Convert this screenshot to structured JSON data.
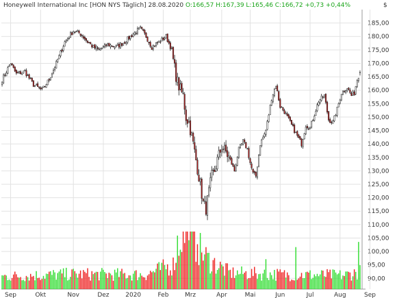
{
  "header": {
    "instrument": "Honeywell International Inc [HON NYS  Täglich] 28.08.2020",
    "ohlc_text": "O:166,57 H:167,39 L:165,46 C:166,72",
    "change_text": "+0,73 +0,44%",
    "currency": "$"
  },
  "colors": {
    "up": "#ffffff",
    "down": "#b22222",
    "vol_up": "#33dd33",
    "vol_down": "#ee2222",
    "grid": "#e2e2e2",
    "text": "#333333"
  },
  "chart_data": {
    "type": "candlestick",
    "title": "Honeywell International Inc [HON NYS  Täglich] 28.08.2020",
    "ylim": [
      86,
      190
    ],
    "y_ticks": [
      90,
      95,
      100,
      105,
      110,
      115,
      120,
      125,
      130,
      135,
      140,
      145,
      150,
      155,
      160,
      165,
      170,
      175,
      180,
      185
    ],
    "y_tick_labels": [
      "90,00",
      "95,00",
      "100,00",
      "105,00",
      "110,00",
      "115,00",
      "120,00",
      "125,00",
      "130,00",
      "135,00",
      "140,00",
      "145,00",
      "150,00",
      "155,00",
      "160,00",
      "165,00",
      "170,00",
      "175,00",
      "180,00",
      "185,00"
    ],
    "x_labels": [
      "Sep",
      "Okt",
      "Nov",
      "Dez",
      "2020",
      "Feb",
      "Mrz",
      "Apr",
      "Mai",
      "Jun",
      "Jul",
      "Aug",
      "Sep"
    ],
    "x_label_index": [
      6,
      27,
      50,
      71,
      92,
      113,
      132,
      154,
      174,
      195,
      216,
      237,
      258
    ],
    "grid": true,
    "last": {
      "open": 166.57,
      "high": 167.39,
      "low": 165.46,
      "close": 166.72,
      "change": 0.73,
      "change_pct": 0.44
    },
    "close_keypoints": [
      [
        0,
        164
      ],
      [
        6,
        170
      ],
      [
        10,
        166
      ],
      [
        16,
        167
      ],
      [
        22,
        162
      ],
      [
        28,
        160
      ],
      [
        33,
        164
      ],
      [
        38,
        170
      ],
      [
        44,
        178
      ],
      [
        50,
        182
      ],
      [
        55,
        181
      ],
      [
        60,
        178
      ],
      [
        64,
        176
      ],
      [
        68,
        175
      ],
      [
        74,
        177
      ],
      [
        80,
        176
      ],
      [
        86,
        178
      ],
      [
        92,
        181
      ],
      [
        97,
        183
      ],
      [
        101,
        180
      ],
      [
        105,
        176
      ],
      [
        110,
        178
      ],
      [
        115,
        180
      ],
      [
        119,
        175
      ],
      [
        121,
        168
      ],
      [
        123,
        163
      ],
      [
        125,
        160
      ],
      [
        127,
        158
      ],
      [
        129,
        150
      ],
      [
        131,
        148
      ],
      [
        133,
        143
      ],
      [
        135,
        137
      ],
      [
        137,
        131
      ],
      [
        139,
        125
      ],
      [
        141,
        118
      ],
      [
        143,
        116
      ],
      [
        145,
        122
      ],
      [
        147,
        128
      ],
      [
        149,
        130
      ],
      [
        151,
        134
      ],
      [
        154,
        139
      ],
      [
        157,
        137
      ],
      [
        160,
        134
      ],
      [
        163,
        130
      ],
      [
        166,
        138
      ],
      [
        169,
        141
      ],
      [
        172,
        138
      ],
      [
        174,
        133
      ],
      [
        176,
        129
      ],
      [
        178,
        128
      ],
      [
        181,
        140
      ],
      [
        185,
        145
      ],
      [
        189,
        157
      ],
      [
        192,
        162
      ],
      [
        195,
        154
      ],
      [
        198,
        152
      ],
      [
        201,
        149
      ],
      [
        204,
        146
      ],
      [
        207,
        143
      ],
      [
        210,
        140
      ],
      [
        213,
        147
      ],
      [
        216,
        146
      ],
      [
        219,
        151
      ],
      [
        222,
        156
      ],
      [
        226,
        158
      ],
      [
        229,
        149
      ],
      [
        232,
        148
      ],
      [
        235,
        153
      ],
      [
        238,
        159
      ],
      [
        242,
        161
      ],
      [
        245,
        158
      ],
      [
        247,
        159
      ],
      [
        249,
        164
      ],
      [
        251,
        166.72
      ]
    ],
    "volume_keypoints": [
      [
        0,
        0.22
      ],
      [
        50,
        0.26
      ],
      [
        100,
        0.25
      ],
      [
        120,
        0.42
      ],
      [
        126,
        0.95
      ],
      [
        131,
        1.0
      ],
      [
        135,
        0.8
      ],
      [
        145,
        0.5
      ],
      [
        160,
        0.28
      ],
      [
        200,
        0.25
      ],
      [
        240,
        0.24
      ],
      [
        251,
        0.3
      ]
    ],
    "volume_spikes": [
      [
        123,
        0.93
      ],
      [
        131,
        0.85
      ],
      [
        137,
        0.78
      ],
      [
        185,
        0.52
      ],
      [
        206,
        0.73
      ],
      [
        250,
        0.82
      ]
    ]
  }
}
